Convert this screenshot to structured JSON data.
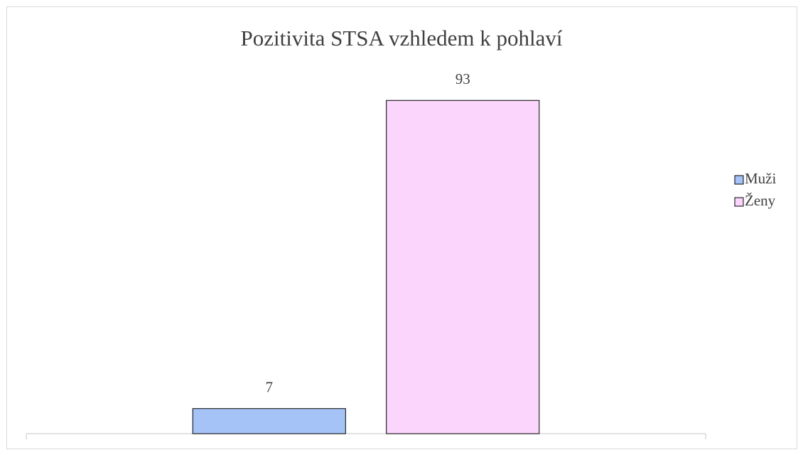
{
  "chart_data": {
    "type": "bar",
    "title": "Pozitivita STSA vzhledem k pohlaví",
    "categories": [
      null
    ],
    "series": [
      {
        "name": "Muži",
        "color": "#a6c3f7",
        "values": [
          7
        ]
      },
      {
        "name": "Ženy",
        "color": "#fcd5fc",
        "values": [
          93
        ]
      }
    ],
    "ylim": [
      0,
      100
    ],
    "legend": "right"
  }
}
